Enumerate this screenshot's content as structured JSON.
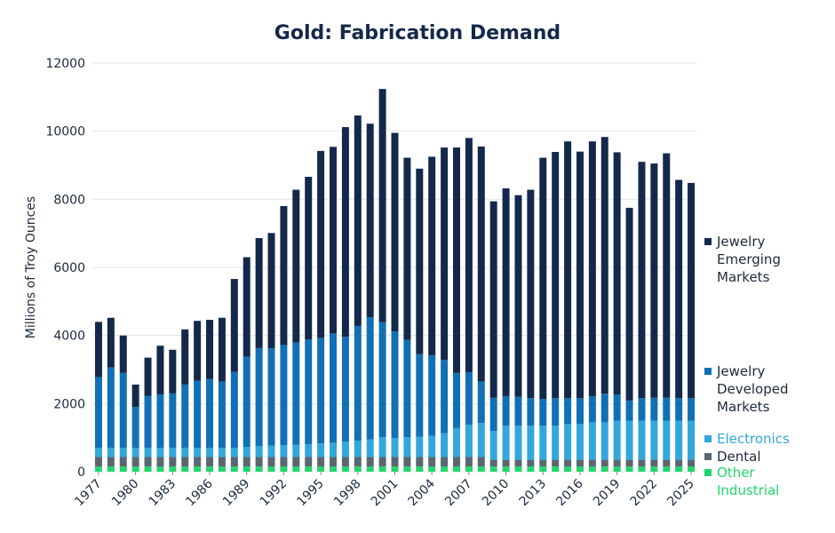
{
  "chart_data": {
    "type": "stacked-bar",
    "title": "Gold: Fabrication Demand",
    "y_label": "Millions of Troy Ounces",
    "x": [
      1977,
      1978,
      1979,
      1980,
      1981,
      1982,
      1983,
      1984,
      1985,
      1986,
      1987,
      1988,
      1989,
      1990,
      1991,
      1992,
      1993,
      1994,
      1995,
      1996,
      1997,
      1998,
      1999,
      2000,
      2001,
      2002,
      2003,
      2004,
      2005,
      2006,
      2007,
      2008,
      2009,
      2010,
      2011,
      2012,
      2013,
      2014,
      2015,
      2016,
      2017,
      2018,
      2019,
      2020,
      2021,
      2022,
      2023,
      2024,
      2025
    ],
    "xlim": [
      1976.5,
      2025.5
    ],
    "xticks": [
      1977,
      1980,
      1983,
      1986,
      1989,
      1992,
      1995,
      1998,
      2001,
      2004,
      2007,
      2010,
      2013,
      2016,
      2019,
      2022,
      2025
    ],
    "ylim": [
      0,
      12000
    ],
    "yticks": [
      0,
      2000,
      4000,
      6000,
      8000,
      10000,
      12000
    ],
    "grid": true,
    "series": [
      {
        "name": "Other Industrial",
        "color": "#1fd66c",
        "values": [
          150,
          150,
          150,
          150,
          150,
          150,
          150,
          150,
          150,
          150,
          150,
          150,
          150,
          150,
          150,
          150,
          150,
          150,
          150,
          150,
          150,
          150,
          150,
          150,
          150,
          150,
          150,
          150,
          150,
          150,
          150,
          150,
          150,
          150,
          150,
          150,
          150,
          150,
          150,
          150,
          150,
          150,
          150,
          150,
          150,
          150,
          150,
          150,
          150
        ]
      },
      {
        "name": "Dental",
        "color": "#5a6670",
        "values": [
          280,
          280,
          280,
          280,
          280,
          280,
          280,
          280,
          280,
          280,
          280,
          280,
          280,
          280,
          280,
          280,
          280,
          280,
          280,
          280,
          280,
          280,
          280,
          280,
          280,
          280,
          280,
          280,
          280,
          280,
          280,
          280,
          200,
          200,
          200,
          200,
          200,
          200,
          200,
          200,
          200,
          200,
          200,
          200,
          200,
          200,
          200,
          200,
          200
        ]
      },
      {
        "name": "Electronics",
        "color": "#32a7dc",
        "values": [
          270,
          270,
          270,
          270,
          270,
          270,
          270,
          270,
          270,
          270,
          270,
          270,
          300,
          320,
          340,
          350,
          360,
          380,
          400,
          420,
          450,
          480,
          520,
          580,
          560,
          580,
          600,
          620,
          700,
          850,
          950,
          1000,
          850,
          1000,
          1000,
          1000,
          1000,
          1000,
          1050,
          1050,
          1100,
          1100,
          1150,
          1150,
          1150,
          1150,
          1150,
          1150,
          1150
        ]
      },
      {
        "name": "Jewelry Developed Markets",
        "color": "#1170b5",
        "values": [
          2080,
          2360,
          2200,
          1200,
          1530,
          1570,
          1600,
          1860,
          1970,
          2020,
          1950,
          2230,
          2650,
          2880,
          2850,
          2940,
          3000,
          3070,
          3100,
          3210,
          3080,
          3370,
          3590,
          3380,
          3130,
          2860,
          2420,
          2370,
          2150,
          1620,
          1540,
          1220,
          970,
          870,
          850,
          810,
          790,
          810,
          760,
          760,
          760,
          840,
          770,
          590,
          660,
          670,
          670,
          660,
          660
        ]
      },
      {
        "name": "Jewelry Emerging Markets",
        "color": "#14294a",
        "values": [
          1620,
          1460,
          1100,
          660,
          1120,
          1430,
          1280,
          1620,
          1760,
          1740,
          1870,
          2730,
          2920,
          3230,
          3390,
          4080,
          4490,
          4780,
          5490,
          5480,
          6160,
          6180,
          5680,
          6850,
          5830,
          5350,
          5450,
          5830,
          6240,
          6620,
          6880,
          6900,
          5770,
          6100,
          5920,
          6120,
          7080,
          7230,
          7540,
          7240,
          7490,
          7540,
          7110,
          5660,
          6940,
          6880,
          7180,
          6410,
          6320
        ]
      }
    ]
  }
}
